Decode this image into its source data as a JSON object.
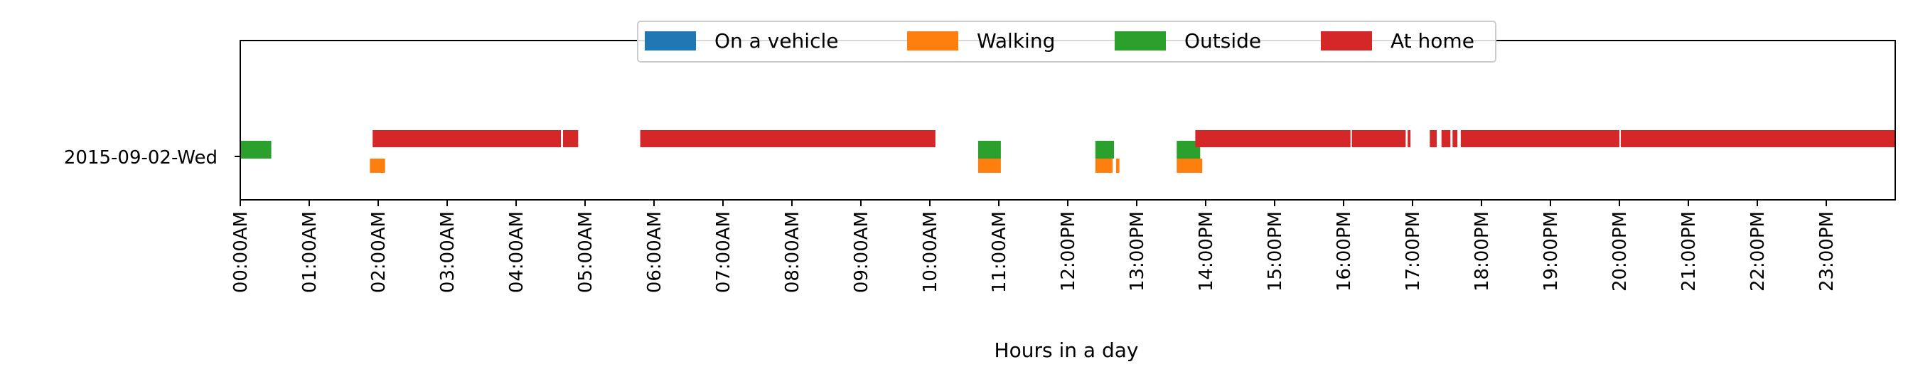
{
  "chart_data": {
    "type": "timeline",
    "title": "",
    "xlabel": "Hours in a day",
    "ylabel": "",
    "xlim": [
      0,
      24
    ],
    "row_label": "2015-09-02-Wed",
    "x_ticks": [
      "00:00AM",
      "01:00AM",
      "02:00AM",
      "03:00AM",
      "04:00AM",
      "05:00AM",
      "06:00AM",
      "07:00AM",
      "08:00AM",
      "09:00AM",
      "10:00AM",
      "11:00AM",
      "12:00PM",
      "13:00PM",
      "14:00PM",
      "15:00PM",
      "16:00PM",
      "17:00PM",
      "18:00PM",
      "19:00PM",
      "20:00PM",
      "21:00PM",
      "22:00PM",
      "23:00PM"
    ],
    "legend_position": "top-center",
    "series": [
      {
        "name": "On a vehicle",
        "color": "#1f77b4",
        "intervals": []
      },
      {
        "name": "Walking",
        "color": "#ff7f0e",
        "intervals": [
          [
            1.88,
            2.1
          ],
          [
            10.7,
            11.03
          ],
          [
            12.4,
            12.65
          ],
          [
            12.7,
            12.75
          ],
          [
            13.58,
            13.95
          ]
        ]
      },
      {
        "name": "Outside",
        "color": "#2ca02c",
        "intervals": [
          [
            0.0,
            0.45
          ],
          [
            10.7,
            11.03
          ],
          [
            12.4,
            12.67
          ],
          [
            13.58,
            13.92
          ]
        ]
      },
      {
        "name": "At home",
        "color": "#d62728",
        "intervals": [
          [
            1.92,
            4.65
          ],
          [
            4.68,
            4.9
          ],
          [
            5.8,
            10.08
          ],
          [
            13.85,
            16.1
          ],
          [
            16.12,
            16.9
          ],
          [
            16.93,
            16.97
          ],
          [
            17.25,
            17.35
          ],
          [
            17.42,
            17.55
          ],
          [
            17.58,
            17.65
          ],
          [
            17.7,
            20.0
          ],
          [
            20.02,
            24.0
          ]
        ]
      }
    ]
  }
}
